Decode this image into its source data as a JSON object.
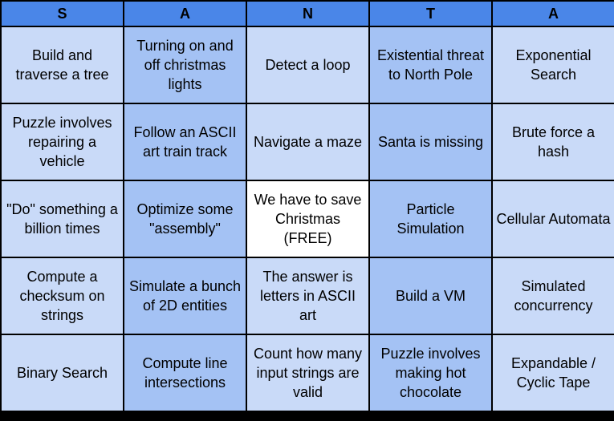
{
  "header": [
    "S",
    "A",
    "N",
    "T",
    "A"
  ],
  "rows": [
    [
      "Build and traverse a tree",
      "Turning on and off christmas lights",
      "Detect a loop",
      "Existential threat to North Pole",
      "Exponential Search"
    ],
    [
      "Puzzle involves repairing a vehicle",
      "Follow an ASCII art train track",
      "Navigate a maze",
      "Santa is missing",
      "Brute force a hash"
    ],
    [
      "\"Do\" something a billion times",
      "Optimize some \"assembly\"",
      "We have to save Christmas (FREE)",
      "Particle Simulation",
      "Cellular Automata"
    ],
    [
      "Compute a checksum on strings",
      "Simulate a bunch of 2D entities",
      "The answer is letters in ASCII art",
      "Build a VM",
      "Simulated concurrency"
    ],
    [
      "Binary Search",
      "Compute line intersections",
      "Count how many input strings are valid",
      "Puzzle involves making hot chocolate",
      "Expandable / Cyclic Tape"
    ]
  ],
  "colors": {
    "header": "#4a86e8",
    "light_column": "#c9daf8",
    "dark_column": "#a4c2f4",
    "free_cell": "#ffffff",
    "grid_lines": "#000000"
  }
}
